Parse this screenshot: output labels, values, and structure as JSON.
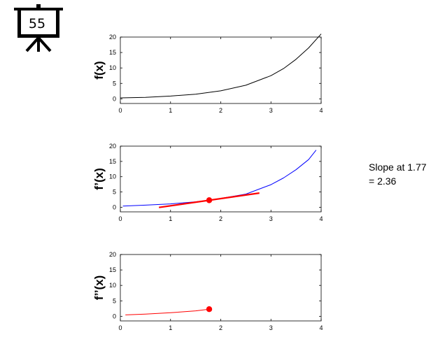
{
  "slide": {
    "number": "55"
  },
  "annotation": {
    "line1": "Slope at 1.77",
    "line2": "= 2.36"
  },
  "colors": {
    "f": "#000000",
    "fprime": "#0000ff",
    "tangent": "#ff0000",
    "fdoubleprime": "#ff0000"
  },
  "chart_data": [
    {
      "type": "line",
      "title": "",
      "xlabel": "",
      "ylabel": "f(x)",
      "xlim": [
        0,
        4
      ],
      "ylim": [
        -1.5,
        20
      ],
      "xticks": [
        "0",
        "1",
        "2",
        "3",
        "4"
      ],
      "yticks": [
        "0",
        "5",
        "10",
        "15",
        "20"
      ],
      "grid": false,
      "series": [
        {
          "color": "#000000",
          "x": [
            0,
            0.5,
            1,
            1.5,
            2,
            2.5,
            3,
            3.25,
            3.5,
            3.75,
            4.0
          ],
          "y": [
            0.3,
            0.5,
            0.9,
            1.5,
            2.6,
            4.4,
            7.5,
            9.8,
            12.8,
            16.5,
            21.0
          ]
        }
      ]
    },
    {
      "type": "line",
      "title": "",
      "xlabel": "",
      "ylabel": "f’(x)",
      "xlim": [
        0,
        4
      ],
      "ylim": [
        -1.5,
        20
      ],
      "xticks": [
        "0",
        "1",
        "2",
        "3",
        "4"
      ],
      "yticks": [
        "0",
        "5",
        "10",
        "15",
        "20"
      ],
      "grid": false,
      "series": [
        {
          "color": "#0000ff",
          "x": [
            0.05,
            0.5,
            1,
            1.5,
            1.77,
            2,
            2.5,
            3,
            3.25,
            3.5,
            3.75,
            3.9
          ],
          "y": [
            0.4,
            0.7,
            1.1,
            1.8,
            2.3,
            2.9,
            4.3,
            7.4,
            9.6,
            12.3,
            15.6,
            18.7
          ]
        },
        {
          "color": "#ff0000",
          "x": [
            0.77,
            2.77
          ],
          "y": [
            -0.06,
            4.66
          ]
        }
      ],
      "points": [
        {
          "x": 1.77,
          "y": 2.3,
          "color": "#ff0000"
        }
      ]
    },
    {
      "type": "line",
      "title": "",
      "xlabel": "",
      "ylabel": "f’’(x)",
      "xlim": [
        0,
        4
      ],
      "ylim": [
        -1.5,
        20
      ],
      "xticks": [
        "0",
        "1",
        "2",
        "3",
        "4"
      ],
      "yticks": [
        "0",
        "5",
        "10",
        "15",
        "20"
      ],
      "grid": false,
      "series": [
        {
          "color": "#ff0000",
          "x": [
            0.1,
            0.5,
            1,
            1.5,
            1.77
          ],
          "y": [
            0.45,
            0.7,
            1.15,
            1.75,
            2.3
          ]
        }
      ],
      "points": [
        {
          "x": 1.77,
          "y": 2.3,
          "color": "#ff0000"
        }
      ]
    }
  ]
}
